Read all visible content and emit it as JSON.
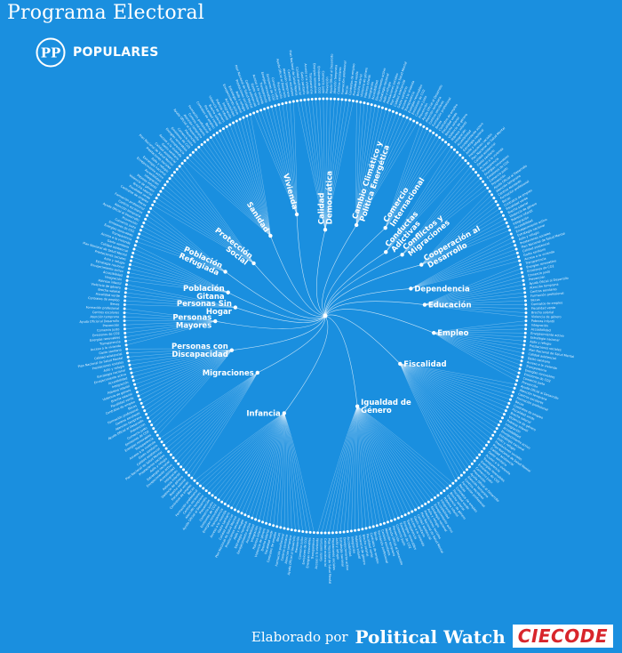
{
  "title": "Programa Electoral",
  "party": {
    "logo_letters": "PP",
    "logo_text": "POPULARES",
    "logo_icon": "pp-circle-logo-icon"
  },
  "footer": {
    "prefix": "Elaborado por",
    "brand1": "Political Watch",
    "brand2": "CIECODE"
  },
  "colors": {
    "background": "#1a8fdf",
    "foreground": "#ffffff",
    "ciecode_red": "#d8252b"
  },
  "diagram": {
    "type": "radial-tree",
    "categories": [
      {
        "label": "Calidad Democrática",
        "angle": -90,
        "leaves": 16
      },
      {
        "label": "Cambio Climático y Política Energética",
        "angle": -72,
        "leaves": 18
      },
      {
        "label": "Comercio Internacional",
        "angle": -54,
        "leaves": 10
      },
      {
        "label": "Conductas Adictivas",
        "angle": -46,
        "leaves": 7
      },
      {
        "label": "Conflictos y Migraciones",
        "angle": -38,
        "leaves": 8
      },
      {
        "label": "Cooperación al Desarrollo",
        "angle": -26,
        "leaves": 12
      },
      {
        "label": "Dependencia",
        "angle": -13,
        "leaves": 8
      },
      {
        "label": "Educación",
        "angle": -2,
        "leaves": 14
      },
      {
        "label": "Empleo",
        "angle": 13,
        "leaves": 16
      },
      {
        "label": "Fiscalidad",
        "angle": 31,
        "leaves": 30
      },
      {
        "label": "Igualdad de Género",
        "angle": 67,
        "leaves": 40
      },
      {
        "label": "Infancia",
        "angle": 112,
        "leaves": 36
      },
      {
        "label": "Migraciones",
        "angle": 150,
        "leaves": 14
      },
      {
        "label": "Personas con Discapacidad",
        "angle": 176,
        "leaves": 24
      },
      {
        "label": "Personas Mayores",
        "angle": 196,
        "leaves": 10
      },
      {
        "label": "Personas Sin Hogar",
        "angle": 203,
        "leaves": 6
      },
      {
        "label": "Población Gitana",
        "angle": 212,
        "leaves": 10
      },
      {
        "label": "Población Refugiada",
        "angle": 222,
        "leaves": 10
      },
      {
        "label": "Protección Social",
        "angle": 232,
        "leaves": 14
      },
      {
        "label": "Sanidad",
        "angle": 246,
        "leaves": 22
      },
      {
        "label": "Vivienda",
        "angle": 258,
        "leaves": 12
      }
    ],
    "leaf_texts": [
      "Plan Nacional de Salud Mental",
      "Calidad asistencial",
      "Gasto sanitario",
      "Acceso a la vivienda",
      "Transparencia",
      "Energías renovables",
      "Emisiones de CO2",
      "Comercio justo",
      "Prevención",
      "Ayuda Oficial al Desarrollo",
      "Atención temprana",
      "Centros escolares",
      "Formación profesional",
      "Becas",
      "Contratos de empleo",
      "Fiscalidad verde",
      "Brecha salarial",
      "Violencia de género",
      "Pobreza infantil",
      "Integración",
      "Accesibilidad",
      "Envejecimiento activo",
      "Estrategia nacional",
      "Asilo y refugio",
      "Prestaciones sociales"
    ]
  }
}
